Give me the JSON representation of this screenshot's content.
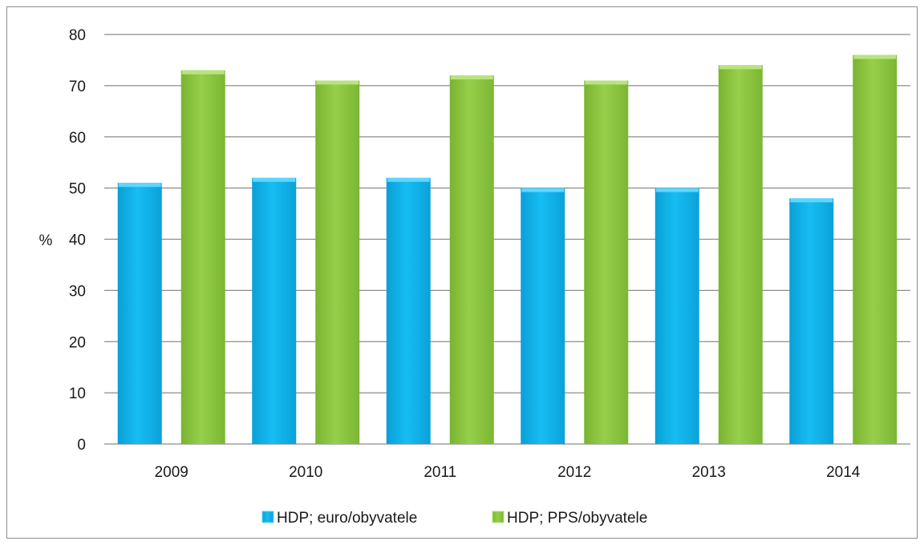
{
  "chart_data": {
    "type": "bar",
    "categories": [
      "2009",
      "2010",
      "2011",
      "2012",
      "2013",
      "2014"
    ],
    "series": [
      {
        "name": "HDP; euro/obyvatele",
        "values": [
          51,
          52,
          52,
          50,
          50,
          48
        ],
        "color": "#12b8f0"
      },
      {
        "name": "HDP; PPS/obyvatele",
        "values": [
          73,
          71,
          72,
          71,
          74,
          76
        ],
        "color": "#8cc63e"
      }
    ],
    "ylabel": "%",
    "ylim": [
      0,
      80
    ],
    "yticks": [
      0,
      10,
      20,
      30,
      40,
      50,
      60,
      70,
      80
    ],
    "grid": true,
    "legend_position": "bottom"
  }
}
